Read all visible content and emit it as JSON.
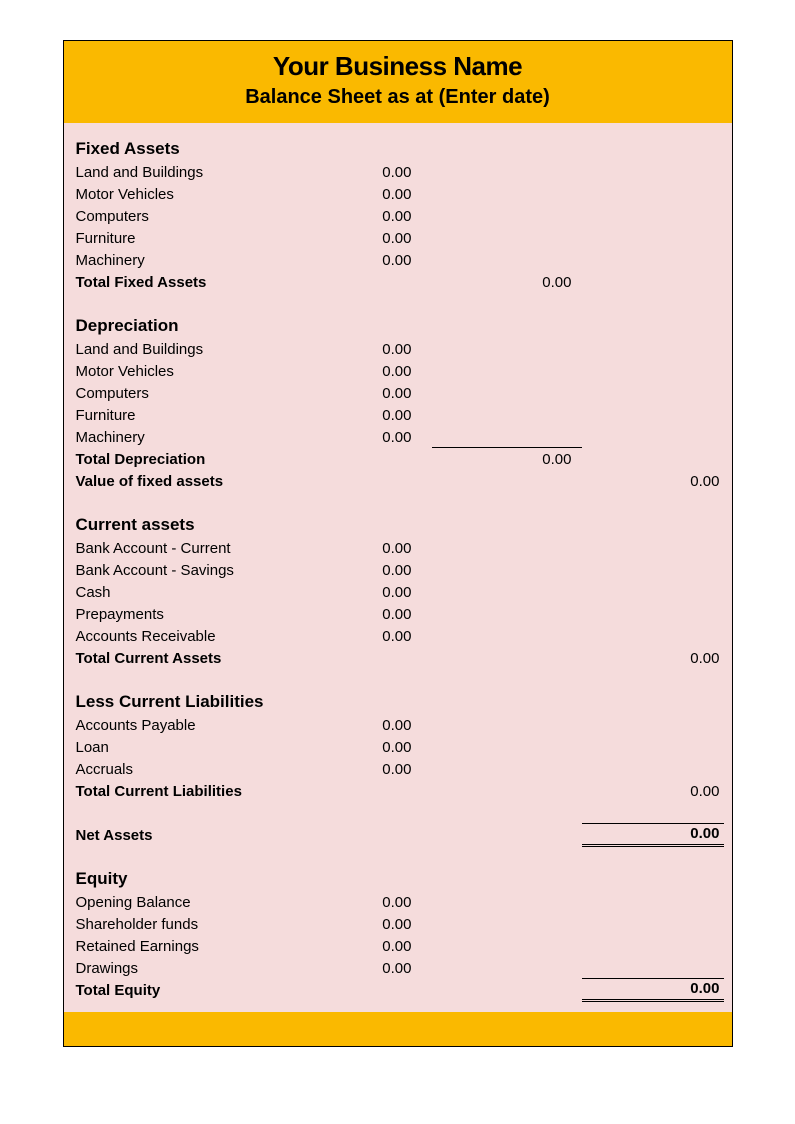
{
  "colors": {
    "header_bg": "#fab900",
    "body_bg": "#f5dcdc",
    "border": "#000000",
    "text": "#000000"
  },
  "typography": {
    "font_family": "Arial",
    "title_fontsize": 26,
    "subtitle_fontsize": 20,
    "section_fontsize": 17,
    "body_fontsize": 15
  },
  "header": {
    "title": "Your Business Name",
    "subtitle": "Balance Sheet as at (Enter date)"
  },
  "fixed_assets": {
    "heading": "Fixed Assets",
    "items": [
      {
        "label": "Land and Buildings",
        "value": "0.00"
      },
      {
        "label": "Motor Vehicles",
        "value": "0.00"
      },
      {
        "label": "Computers",
        "value": "0.00"
      },
      {
        "label": "Furniture",
        "value": "0.00"
      },
      {
        "label": "Machinery",
        "value": "0.00"
      }
    ],
    "total_label": "Total Fixed Assets",
    "total_value": "0.00"
  },
  "depreciation": {
    "heading": "Depreciation",
    "items": [
      {
        "label": "Land and Buildings",
        "value": "0.00"
      },
      {
        "label": "Motor Vehicles",
        "value": "0.00"
      },
      {
        "label": "Computers",
        "value": "0.00"
      },
      {
        "label": "Furniture",
        "value": "0.00"
      },
      {
        "label": "Machinery",
        "value": "0.00"
      }
    ],
    "total_label": "Total Depreciation",
    "total_value": "0.00",
    "value_label": "Value of fixed assets",
    "value_amount": "0.00"
  },
  "current_assets": {
    "heading": "Current assets",
    "items": [
      {
        "label": "Bank Account - Current",
        "value": "0.00"
      },
      {
        "label": "Bank Account - Savings",
        "value": "0.00"
      },
      {
        "label": "Cash",
        "value": "0.00"
      },
      {
        "label": "Prepayments",
        "value": "0.00"
      },
      {
        "label": "Accounts Receivable",
        "value": "0.00"
      }
    ],
    "total_label": "Total Current Assets",
    "total_value": "0.00"
  },
  "current_liabilities": {
    "heading": "Less Current Liabilities",
    "items": [
      {
        "label": "Accounts Payable",
        "value": "0.00"
      },
      {
        "label": "Loan",
        "value": "0.00"
      },
      {
        "label": "Accruals",
        "value": "0.00"
      }
    ],
    "total_label": "Total Current Liabilities",
    "total_value": "0.00"
  },
  "net_assets": {
    "label": "Net Assets",
    "value": "0.00"
  },
  "equity": {
    "heading": "Equity",
    "items": [
      {
        "label": "Opening Balance",
        "value": "0.00"
      },
      {
        "label": "Shareholder funds",
        "value": "0.00"
      },
      {
        "label": "Retained Earnings",
        "value": "0.00"
      },
      {
        "label": "Drawings",
        "value": "0.00"
      }
    ],
    "total_label": "Total Equity",
    "total_value": "0.00"
  }
}
